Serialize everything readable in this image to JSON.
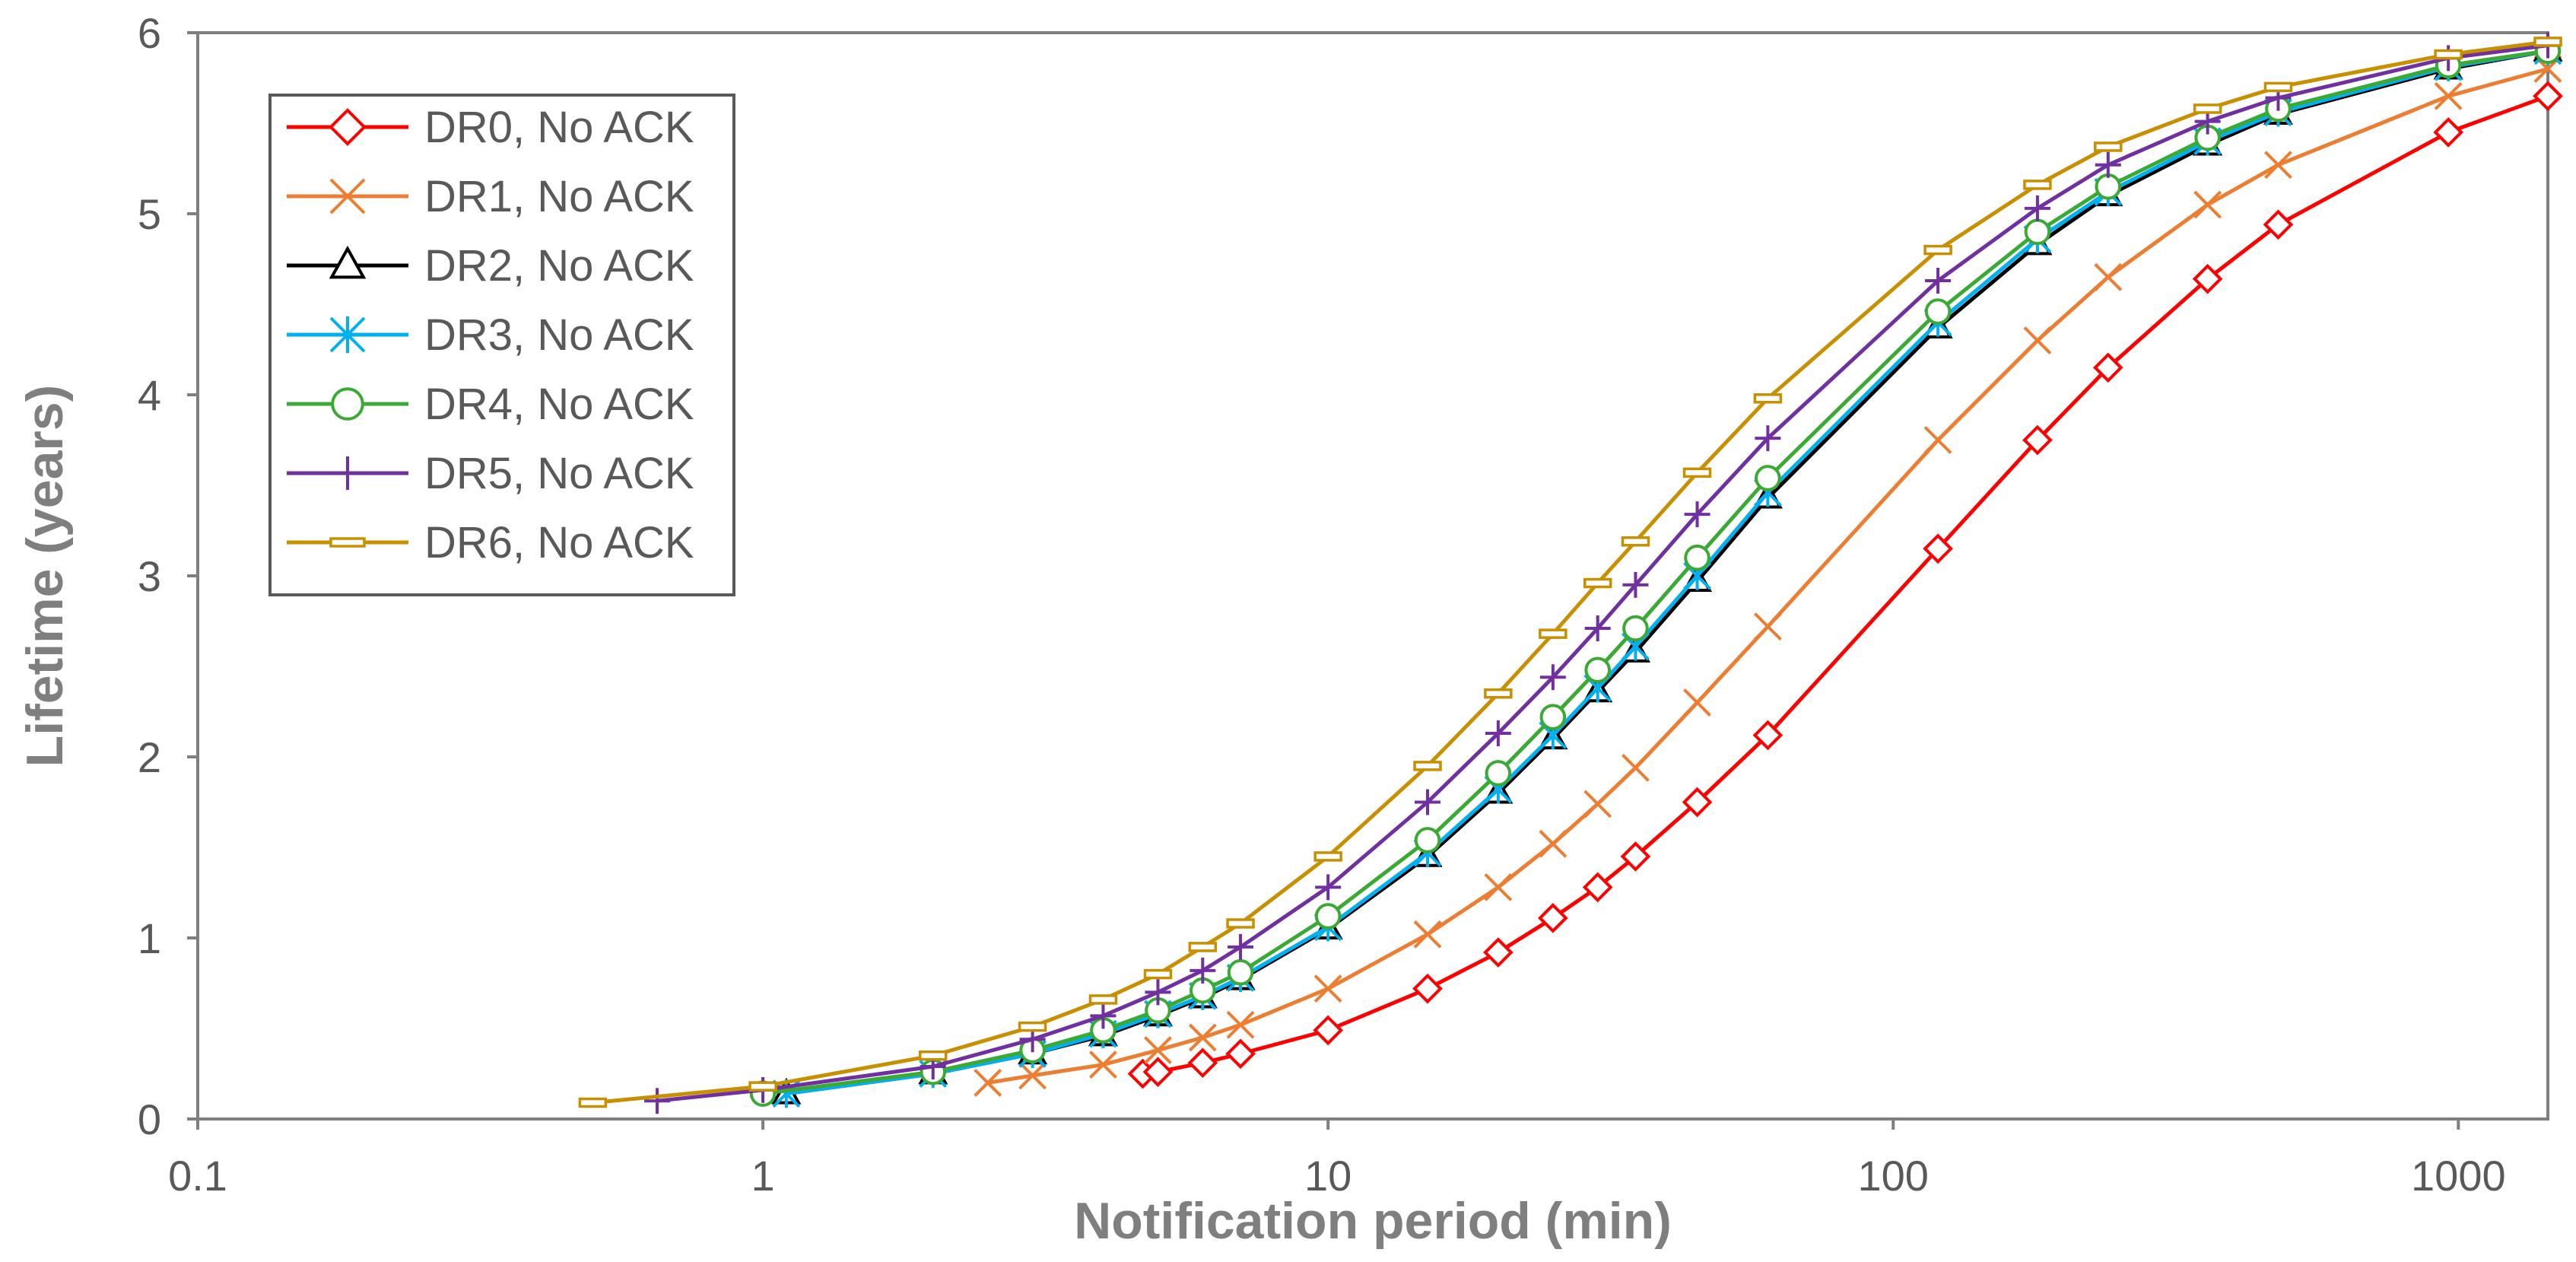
{
  "chart_data": {
    "type": "line",
    "title": "",
    "xlabel": "Notification period (min)",
    "ylabel": "Lifetime (years)",
    "xscale": "log",
    "xlim": [
      0.1,
      1440
    ],
    "ylim": [
      0,
      6
    ],
    "x_ticks": [
      "0.1",
      "1",
      "10",
      "100",
      "1000"
    ],
    "y_ticks": [
      "0",
      "1",
      "2",
      "3",
      "4",
      "5",
      "6"
    ],
    "grid": false,
    "legend_position": "top-left",
    "series": [
      {
        "name": "DR0, No ACK",
        "color": "#ff0000",
        "marker": "diamond",
        "x": [
          4.7,
          5,
          6,
          7,
          10,
          15,
          20,
          25,
          30,
          35,
          45,
          60,
          120,
          180,
          240,
          360,
          480,
          960,
          1440
        ],
        "y": [
          0.25,
          0.26,
          0.31,
          0.36,
          0.49,
          0.72,
          0.92,
          1.11,
          1.28,
          1.45,
          1.75,
          2.12,
          3.15,
          3.75,
          4.15,
          4.64,
          4.94,
          5.45,
          5.65
        ]
      },
      {
        "name": "DR1, No ACK",
        "color": "#ed7d31",
        "marker": "x",
        "x": [
          2.5,
          3,
          4,
          5,
          6,
          7,
          10,
          15,
          20,
          25,
          30,
          35,
          45,
          60,
          120,
          180,
          240,
          360,
          480,
          960,
          1440
        ],
        "y": [
          0.2,
          0.24,
          0.3,
          0.38,
          0.45,
          0.52,
          0.72,
          1.02,
          1.28,
          1.52,
          1.74,
          1.94,
          2.3,
          2.72,
          3.75,
          4.3,
          4.65,
          5.05,
          5.27,
          5.65,
          5.8
        ]
      },
      {
        "name": "DR2, No ACK",
        "color": "#000000",
        "marker": "triangle",
        "x": [
          1.1,
          2,
          3,
          4,
          5,
          6,
          7,
          10,
          15,
          20,
          25,
          30,
          35,
          45,
          60,
          120,
          180,
          240,
          360,
          480,
          960,
          1440
        ],
        "y": [
          0.14,
          0.25,
          0.36,
          0.46,
          0.57,
          0.67,
          0.77,
          1.05,
          1.45,
          1.8,
          2.1,
          2.36,
          2.58,
          2.97,
          3.43,
          4.37,
          4.83,
          5.1,
          5.38,
          5.55,
          5.8,
          5.9
        ]
      },
      {
        "name": "DR3, No ACK",
        "color": "#00b0f0",
        "marker": "asterisk",
        "x": [
          1.1,
          2,
          3,
          4,
          5,
          6,
          7,
          10,
          15,
          20,
          25,
          30,
          35,
          45,
          60,
          120,
          180,
          240,
          360,
          480,
          960,
          1440
        ],
        "y": [
          0.14,
          0.25,
          0.36,
          0.47,
          0.58,
          0.68,
          0.78,
          1.06,
          1.47,
          1.82,
          2.12,
          2.38,
          2.61,
          3.0,
          3.46,
          4.4,
          4.86,
          5.12,
          5.4,
          5.56,
          5.81,
          5.9
        ]
      },
      {
        "name": "DR4, No ACK",
        "color": "#3aaa35",
        "marker": "circle",
        "x": [
          1,
          2,
          3,
          4,
          5,
          6,
          7,
          10,
          15,
          20,
          25,
          30,
          35,
          45,
          60,
          120,
          180,
          240,
          360,
          480,
          960,
          1440
        ],
        "y": [
          0.14,
          0.26,
          0.38,
          0.49,
          0.6,
          0.71,
          0.81,
          1.12,
          1.54,
          1.91,
          2.22,
          2.48,
          2.71,
          3.1,
          3.54,
          4.46,
          4.9,
          5.15,
          5.42,
          5.58,
          5.82,
          5.9
        ]
      },
      {
        "name": "DR5, No ACK",
        "color": "#7030a0",
        "marker": "plus",
        "x": [
          0.65,
          1,
          2,
          3,
          4,
          5,
          6,
          7,
          10,
          15,
          20,
          25,
          30,
          35,
          45,
          60,
          120,
          180,
          240,
          360,
          480,
          960,
          1440
        ],
        "y": [
          0.1,
          0.16,
          0.29,
          0.44,
          0.57,
          0.7,
          0.82,
          0.95,
          1.28,
          1.75,
          2.13,
          2.44,
          2.71,
          2.95,
          3.34,
          3.76,
          4.63,
          5.03,
          5.27,
          5.51,
          5.64,
          5.86,
          5.93
        ]
      },
      {
        "name": "DR6, No ACK",
        "color": "#c89000",
        "marker": "dash",
        "x": [
          0.5,
          1,
          2,
          3,
          4,
          5,
          6,
          7,
          10,
          15,
          20,
          25,
          30,
          35,
          45,
          60,
          120,
          180,
          240,
          360,
          480,
          960,
          1440
        ],
        "y": [
          0.09,
          0.18,
          0.35,
          0.51,
          0.66,
          0.8,
          0.95,
          1.08,
          1.45,
          1.95,
          2.35,
          2.68,
          2.96,
          3.19,
          3.57,
          3.98,
          4.8,
          5.16,
          5.37,
          5.58,
          5.7,
          5.88,
          5.95
        ]
      }
    ]
  }
}
